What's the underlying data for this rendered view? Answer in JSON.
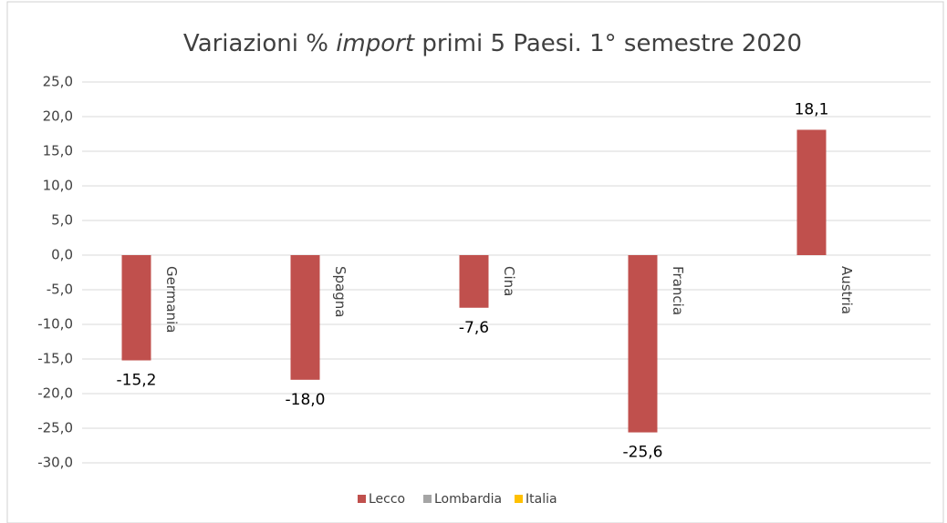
{
  "chart_data": {
    "type": "bar",
    "title": [
      "Variazioni %",
      "import",
      "primi 5 Paesi.  1° semestre 2020"
    ],
    "categories": [
      "Germania",
      "Spagna",
      "Cina",
      "Francia",
      "Austria"
    ],
    "series": [
      {
        "name": "Lecco",
        "color": "#c0504d",
        "values": [
          -15.2,
          -18.0,
          -7.6,
          -25.6,
          18.1
        ],
        "value_labels": [
          "-15,2",
          "-18,0",
          "-7,6",
          "-25,6",
          "18,1"
        ]
      },
      {
        "name": "Lombardia",
        "color": "#a5a5a5",
        "values": [
          null,
          null,
          null,
          null,
          null
        ]
      },
      {
        "name": "Italia",
        "color": "#ffc000",
        "values": [
          null,
          null,
          null,
          null,
          null
        ]
      }
    ],
    "ylim": [
      -30,
      25
    ],
    "yticks": [
      {
        "value": -30,
        "label": "-30,0"
      },
      {
        "value": -25,
        "label": "-25,0"
      },
      {
        "value": -20,
        "label": "-20,0"
      },
      {
        "value": -15,
        "label": "-15,0"
      },
      {
        "value": -10,
        "label": "-10,0"
      },
      {
        "value": -5,
        "label": "-5,0"
      },
      {
        "value": 0,
        "label": "0,0"
      },
      {
        "value": 5,
        "label": "5,0"
      },
      {
        "value": 10,
        "label": "10,0"
      },
      {
        "value": 15,
        "label": "15,0"
      },
      {
        "value": 20,
        "label": "20,0"
      },
      {
        "value": 25,
        "label": "25,0"
      }
    ],
    "grid": true,
    "legend": "bottom"
  }
}
